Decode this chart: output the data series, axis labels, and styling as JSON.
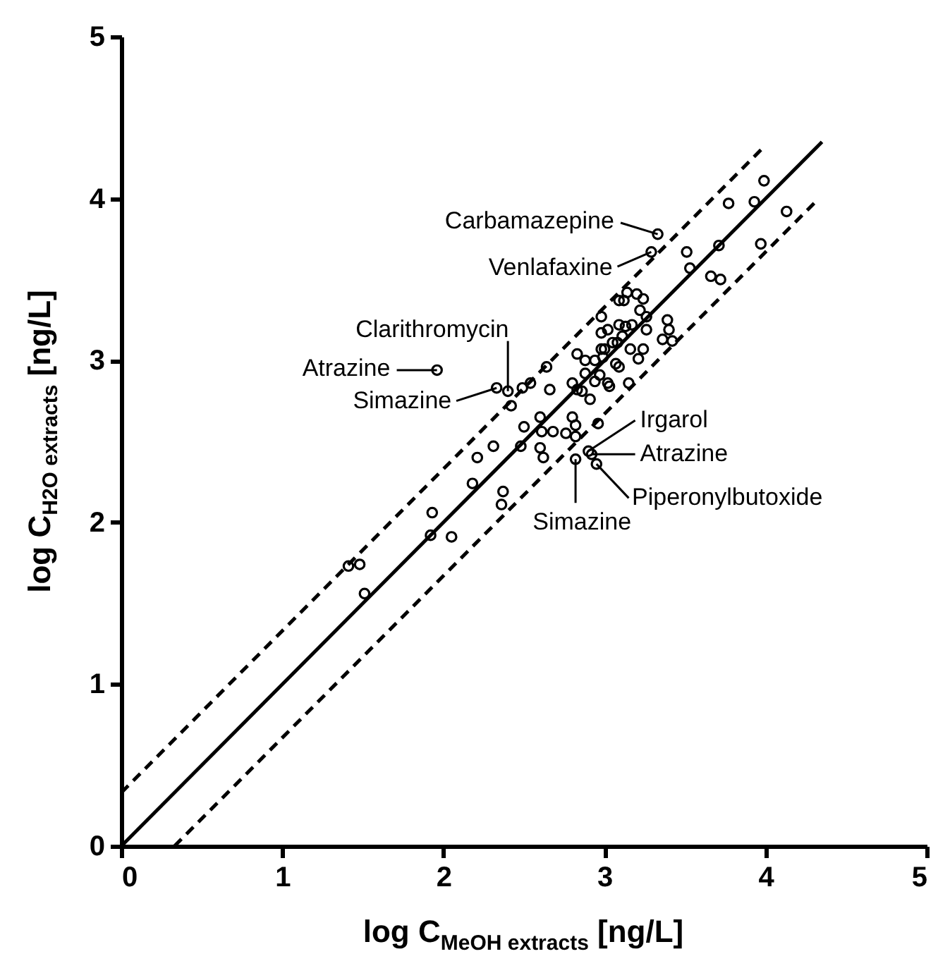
{
  "chart_data": {
    "type": "scatter",
    "xlabel": "log C$_{MeOH extracts}$ [ng/L]",
    "ylabel": "log C$_{H2O extracts}$ [ng/L]",
    "xlim": [
      0,
      5
    ],
    "ylim": [
      0,
      5
    ],
    "xticks": [
      0,
      1,
      2,
      3,
      4,
      5
    ],
    "yticks": [
      0,
      1,
      2,
      3,
      4,
      5
    ],
    "grid": false,
    "series": [
      {
        "type": "line",
        "color": "#000000",
        "line_style": "solid",
        "marker": "none",
        "x": [
          0,
          4.35
        ],
        "values": [
          0,
          4.35
        ]
      },
      {
        "type": "line",
        "color": "#000000",
        "line_style": "dashed",
        "marker": "none",
        "x": [
          0,
          4.0
        ],
        "values": [
          0.33,
          4.33
        ]
      },
      {
        "type": "line",
        "color": "#000000",
        "line_style": "dashed",
        "marker": "none",
        "x": [
          0.33,
          4.33
        ],
        "values": [
          0,
          4.0
        ]
      },
      {
        "color": "#000000",
        "marker": "circle",
        "x": [
          3.33,
          3.29,
          3.51,
          3.53,
          3.71,
          3.66,
          3.72,
          3.77,
          3.93,
          3.99,
          4.13,
          3.97,
          1.96,
          2.4,
          2.33,
          2.42,
          2.49,
          2.54,
          2.64,
          2.66,
          2.5,
          2.6,
          2.61,
          2.68,
          2.76,
          2.8,
          2.82,
          2.82,
          2.96,
          2.48,
          2.6,
          2.62,
          2.31,
          2.21,
          2.18,
          2.37,
          2.36,
          2.9,
          2.92,
          2.95,
          2.82,
          1.93,
          1.92,
          2.05,
          1.41,
          1.48,
          1.51,
          2.8,
          2.83,
          2.86,
          2.91,
          2.83,
          2.88,
          2.88,
          2.94,
          2.94,
          2.97,
          2.98,
          2.98,
          2.98,
          3.02,
          3.02,
          3.03,
          3.07,
          3.09,
          3.08,
          3.11,
          3.09,
          3.13,
          3.16,
          3.12,
          3.14,
          3.2,
          3.24,
          3.22,
          3.26,
          3.26,
          3.17,
          3.21,
          3.24,
          3.15,
          3.39,
          3.4,
          3.36,
          3.42,
          3.09,
          3.05,
          2.99,
          3.0
        ],
        "values": [
          3.78,
          3.67,
          3.67,
          3.57,
          3.71,
          3.52,
          3.5,
          3.97,
          3.98,
          4.11,
          3.92,
          3.72,
          2.94,
          2.81,
          2.83,
          2.72,
          2.83,
          2.86,
          2.96,
          2.82,
          2.59,
          2.65,
          2.56,
          2.56,
          2.55,
          2.65,
          2.6,
          2.53,
          2.61,
          2.47,
          2.46,
          2.4,
          2.47,
          2.4,
          2.24,
          2.19,
          2.11,
          2.44,
          2.42,
          2.36,
          2.39,
          2.06,
          1.92,
          1.91,
          1.73,
          1.74,
          1.56,
          2.86,
          2.82,
          2.81,
          2.76,
          3.04,
          3.0,
          2.92,
          2.87,
          3.0,
          2.91,
          3.07,
          3.17,
          3.27,
          3.19,
          2.86,
          2.84,
          2.98,
          2.96,
          3.11,
          3.15,
          3.22,
          3.21,
          3.07,
          3.37,
          3.42,
          3.41,
          3.38,
          3.31,
          3.27,
          3.19,
          3.22,
          3.01,
          3.07,
          2.86,
          3.25,
          3.19,
          3.13,
          3.12,
          3.37,
          3.11,
          3.02,
          3.07
        ]
      }
    ],
    "annotations": [
      {
        "text": "Carbamazepine",
        "x": 3.33,
        "y": 3.78
      },
      {
        "text": "Venlafaxine",
        "x": 3.29,
        "y": 3.67
      },
      {
        "text": "Clarithromycin",
        "x": 2.4,
        "y": 2.81
      },
      {
        "text": "Atrazine",
        "x": 1.96,
        "y": 2.94
      },
      {
        "text": "Simazine",
        "x": 2.33,
        "y": 2.83
      },
      {
        "text": "Irgarol",
        "x": 2.9,
        "y": 2.44
      },
      {
        "text": "Atrazine",
        "x": 2.92,
        "y": 2.42
      },
      {
        "text": "Piperonylbutoxide",
        "x": 2.95,
        "y": 2.36
      },
      {
        "text": "Simazine",
        "x": 2.82,
        "y": 2.39
      }
    ]
  }
}
